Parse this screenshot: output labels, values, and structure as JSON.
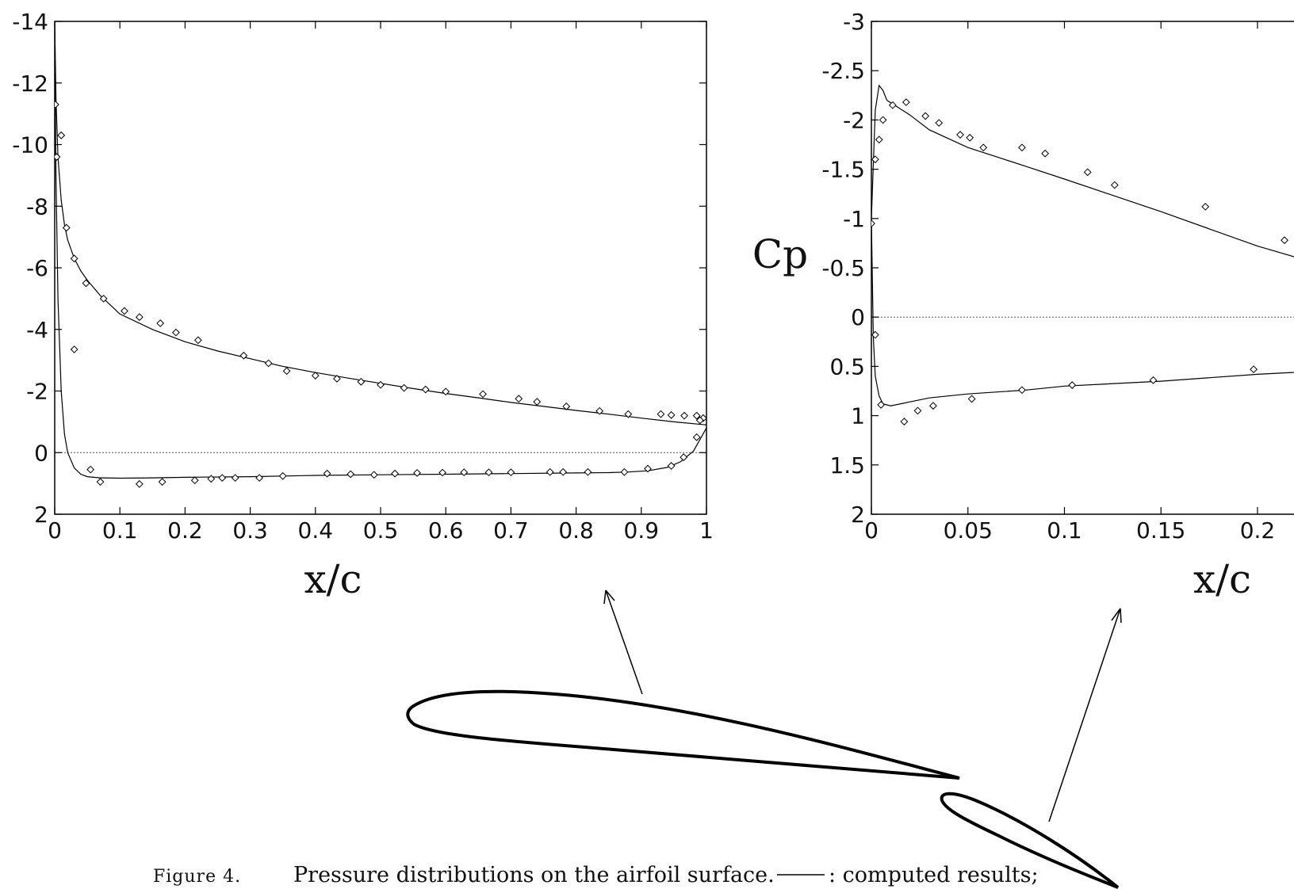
{
  "chart_data": [
    {
      "type": "line",
      "title": "",
      "xlabel": "x/c",
      "ylabel": "",
      "xlim": [
        0,
        1
      ],
      "ylim": [
        2,
        -14
      ],
      "y_reversed": true,
      "x_ticks": [
        "0",
        "0.1",
        "0.2",
        "0.3",
        "0.4",
        "0.5",
        "0.6",
        "0.7",
        "0.8",
        "0.9",
        "1"
      ],
      "y_ticks": [
        "-14",
        "-12",
        "-10",
        "-8",
        "-6",
        "-4",
        "-2",
        "0",
        "2"
      ],
      "grid": false,
      "zero_line": 0,
      "series": [
        {
          "style": "line",
          "x": [
            0.0,
            0.002,
            0.005,
            0.01,
            0.015,
            0.02,
            0.03,
            0.04,
            0.05,
            0.07,
            0.1,
            0.15,
            0.2,
            0.25,
            0.3,
            0.35,
            0.4,
            0.45,
            0.5,
            0.55,
            0.6,
            0.65,
            0.7,
            0.75,
            0.8,
            0.85,
            0.9,
            0.95,
            1.0
          ],
          "y": [
            -14.0,
            -11.5,
            -9.6,
            -8.2,
            -7.4,
            -6.9,
            -6.3,
            -5.9,
            -5.6,
            -5.1,
            -4.5,
            -4.0,
            -3.6,
            -3.3,
            -3.05,
            -2.8,
            -2.6,
            -2.42,
            -2.25,
            -2.08,
            -1.92,
            -1.78,
            -1.63,
            -1.5,
            -1.37,
            -1.25,
            -1.12,
            -1.0,
            -0.9
          ]
        },
        {
          "style": "line",
          "x": [
            0.0,
            0.002,
            0.005,
            0.01,
            0.015,
            0.02,
            0.03,
            0.04,
            0.05,
            0.07,
            0.1,
            0.15,
            0.2,
            0.3,
            0.4,
            0.5,
            0.6,
            0.7,
            0.8,
            0.85,
            0.88,
            0.91,
            0.94,
            0.96,
            0.98,
            1.0
          ],
          "y": [
            -14.0,
            -9.0,
            -5.0,
            -2.0,
            -0.6,
            0.0,
            0.5,
            0.7,
            0.78,
            0.82,
            0.83,
            0.82,
            0.8,
            0.78,
            0.74,
            0.72,
            0.7,
            0.68,
            0.66,
            0.65,
            0.63,
            0.59,
            0.48,
            0.3,
            -0.05,
            -0.8
          ]
        },
        {
          "style": "markers",
          "x": [
            0.001,
            0.003,
            0.01,
            0.018,
            0.03,
            0.048,
            0.075,
            0.107,
            0.13,
            0.162,
            0.186,
            0.22,
            0.29,
            0.328,
            0.356,
            0.4,
            0.433,
            0.47,
            0.5,
            0.536,
            0.569,
            0.6,
            0.657,
            0.712,
            0.74,
            0.785,
            0.836,
            0.88,
            0.93,
            0.946,
            0.966,
            0.985,
            0.995
          ],
          "y": [
            -11.3,
            -9.6,
            -10.3,
            -7.3,
            -6.3,
            -5.5,
            -5.0,
            -4.6,
            -4.4,
            -4.2,
            -3.9,
            -3.65,
            -3.15,
            -2.9,
            -2.65,
            -2.5,
            -2.4,
            -2.3,
            -2.2,
            -2.1,
            -2.05,
            -1.98,
            -1.9,
            -1.75,
            -1.65,
            -1.5,
            -1.35,
            -1.25,
            -1.25,
            -1.22,
            -1.2,
            -1.2,
            -1.12
          ]
        },
        {
          "style": "markers",
          "x": [
            0.03,
            0.055,
            0.07,
            0.13,
            0.165,
            0.215,
            0.24,
            0.257,
            0.277,
            0.314,
            0.35,
            0.418,
            0.454,
            0.49,
            0.522,
            0.556,
            0.595,
            0.628,
            0.666,
            0.7,
            0.76,
            0.78,
            0.818,
            0.874,
            0.91,
            0.946,
            0.965,
            0.985,
            0.99
          ],
          "y": [
            -3.35,
            0.55,
            0.95,
            1.02,
            0.95,
            0.9,
            0.85,
            0.82,
            0.82,
            0.82,
            0.76,
            0.68,
            0.7,
            0.72,
            0.68,
            0.66,
            0.65,
            0.64,
            0.64,
            0.64,
            0.63,
            0.63,
            0.63,
            0.63,
            0.52,
            0.43,
            0.15,
            -0.5,
            -1.05
          ]
        }
      ]
    },
    {
      "type": "line",
      "title": "",
      "xlabel": "x/c",
      "ylabel": "Cp",
      "xlim": [
        0,
        0.23
      ],
      "ylim": [
        2,
        -3
      ],
      "y_reversed": true,
      "x_ticks": [
        "0",
        "0.05",
        "0.1",
        "0.15",
        "0.2"
      ],
      "y_ticks": [
        "-3",
        "-2.5",
        "-2",
        "-1.5",
        "-1",
        "-0.5",
        "0",
        "0.5",
        "1",
        "1.5",
        "2"
      ],
      "grid": false,
      "zero_line": 0,
      "series": [
        {
          "style": "line",
          "x": [
            0.0,
            0.002,
            0.004,
            0.006,
            0.008,
            0.012,
            0.02,
            0.03,
            0.05,
            0.08,
            0.1,
            0.15,
            0.2,
            0.23
          ],
          "y": [
            -1.0,
            -2.1,
            -2.35,
            -2.3,
            -2.2,
            -2.15,
            -2.05,
            -1.9,
            -1.72,
            -1.53,
            -1.4,
            -1.07,
            -0.72,
            -0.55
          ]
        },
        {
          "style": "line",
          "x": [
            0.0,
            0.001,
            0.002,
            0.004,
            0.006,
            0.01,
            0.02,
            0.03,
            0.05,
            0.08,
            0.1,
            0.15,
            0.2,
            0.23
          ],
          "y": [
            -1.0,
            0.2,
            0.6,
            0.8,
            0.88,
            0.9,
            0.86,
            0.82,
            0.78,
            0.74,
            0.7,
            0.65,
            0.58,
            0.55
          ]
        },
        {
          "style": "markers",
          "x": [
            0.0,
            0.002,
            0.004,
            0.006,
            0.011,
            0.018,
            0.028,
            0.035,
            0.046,
            0.051,
            0.058,
            0.078,
            0.09,
            0.112,
            0.126,
            0.173,
            0.214
          ],
          "y": [
            -0.95,
            -1.6,
            -1.8,
            -2.0,
            -2.15,
            -2.18,
            -2.04,
            -1.97,
            -1.85,
            -1.82,
            -1.72,
            -1.72,
            -1.66,
            -1.47,
            -1.34,
            -1.12,
            -0.78
          ]
        },
        {
          "style": "markers",
          "x": [
            0.002,
            0.005,
            0.017,
            0.024,
            0.032,
            0.052,
            0.078,
            0.104,
            0.146,
            0.198
          ],
          "y": [
            0.18,
            0.89,
            1.06,
            0.95,
            0.9,
            0.83,
            0.74,
            0.69,
            0.64,
            0.53
          ]
        }
      ]
    }
  ],
  "caption": {
    "figure_label": "Figure 4.",
    "text": "Pressure distributions on the airfoil surface.",
    "legend_text": ": computed results;"
  }
}
